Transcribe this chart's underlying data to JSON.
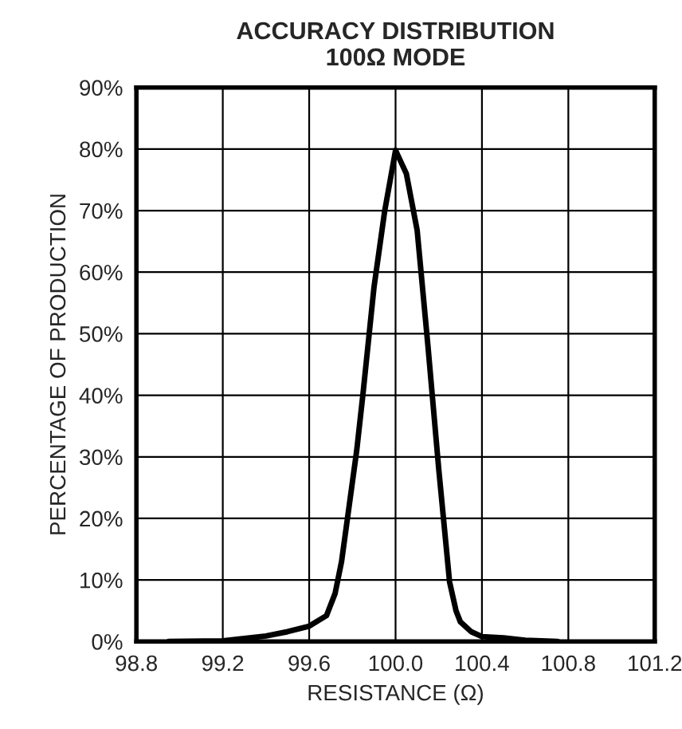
{
  "chart_data": {
    "type": "line",
    "title": "ACCURACY DISTRIBUTION\n100Ω MODE",
    "xlabel": "RESISTANCE (Ω)",
    "ylabel": "PERCENTAGE OF PRODUCTION",
    "series": [
      {
        "color": "#000000",
        "x": [
          98.95,
          99.2,
          99.4,
          99.5,
          99.6,
          99.68,
          99.72,
          99.75,
          99.78,
          99.82,
          99.85,
          99.9,
          99.95,
          100.0,
          100.05,
          100.1,
          100.15,
          100.2,
          100.25,
          100.28,
          100.3,
          100.35,
          100.4,
          100.5,
          100.6,
          100.75
        ],
        "values": [
          0,
          0.1,
          0.9,
          1.6,
          2.5,
          4.2,
          7.8,
          13,
          20.7,
          31,
          40.5,
          57.5,
          70,
          79.8,
          76,
          66.8,
          48,
          28,
          9.7,
          5,
          3.2,
          1.6,
          0.8,
          0.6,
          0.2,
          0
        ]
      }
    ],
    "xlim": [
      98.8,
      101.2
    ],
    "xticks": [
      {
        "value": 98.8,
        "label": "98.8"
      },
      {
        "value": 99.2,
        "label": "99.2"
      },
      {
        "value": 99.6,
        "label": "99.6"
      },
      {
        "value": 100.0,
        "label": "100.0"
      },
      {
        "value": 100.4,
        "label": "100.4"
      },
      {
        "value": 100.8,
        "label": "100.8"
      },
      {
        "value": 101.2,
        "label": "101.2"
      }
    ],
    "ylim": [
      0,
      90
    ],
    "yticks": [
      {
        "value": 0,
        "label": "0%"
      },
      {
        "value": 10,
        "label": "10%"
      },
      {
        "value": 20,
        "label": "20%"
      },
      {
        "value": 30,
        "label": "30%"
      },
      {
        "value": 40,
        "label": "40%"
      },
      {
        "value": 50,
        "label": "50%"
      },
      {
        "value": 60,
        "label": "60%"
      },
      {
        "value": 70,
        "label": "70%"
      },
      {
        "value": 80,
        "label": "80%"
      },
      {
        "value": 90,
        "label": "90%"
      }
    ],
    "grid": true,
    "marker": "none",
    "line_style": "solid"
  }
}
